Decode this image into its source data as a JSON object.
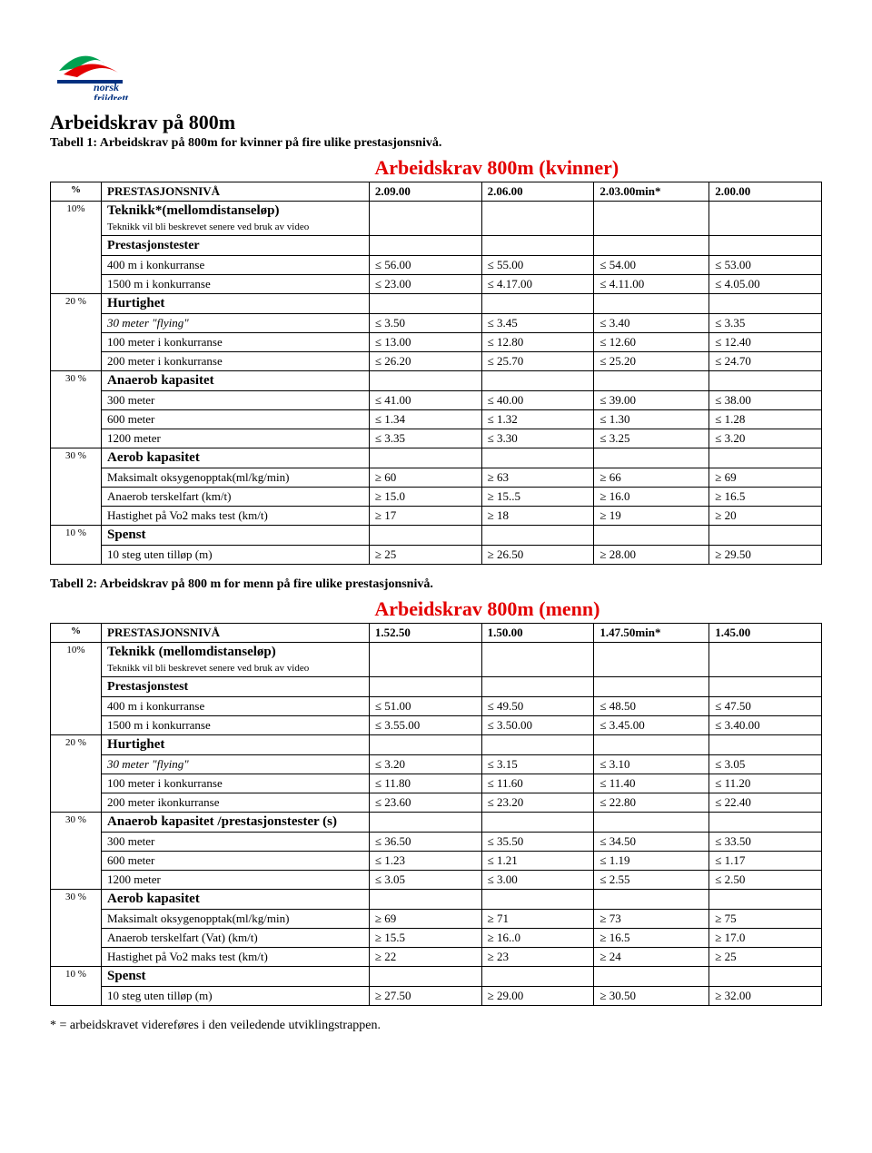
{
  "logo_label": "norsk friidrett",
  "main_title": "Arbeidskrav på 800m",
  "table1": {
    "caption": "Tabell 1: Arbeidskrav på 800m for kvinner på fire ulike prestasjonsnivå.",
    "title": "Arbeidskrav 800m (kvinner)",
    "header": {
      "pct": "%",
      "label": "PRESTASJONSNIVÅ",
      "c1": "2.09.00",
      "c2": "2.06.00",
      "c3": "2.03.00min*",
      "c4": "2.00.00"
    },
    "sections": [
      {
        "pct": "10%",
        "head": "Teknikk*(mellomdistanseløp)",
        "sub": "Teknikk vil bli beskrevet senere ved bruk av video",
        "extra": "Prestasjonstester",
        "rows": [
          {
            "label": "400 m i konkurranse",
            "v": [
              "≤ 56.00",
              "≤ 55.00",
              "≤ 54.00",
              "≤ 53.00"
            ]
          },
          {
            "label": "1500 m i konkurranse",
            "v": [
              "≤ 23.00",
              "≤ 4.17.00",
              "≤ 4.11.00",
              "≤ 4.05.00"
            ]
          }
        ]
      },
      {
        "pct": "20 %",
        "head": "Hurtighet",
        "rows": [
          {
            "label": "30 meter \"flying\"",
            "ital": true,
            "v": [
              "≤ 3.50",
              "≤ 3.45",
              "≤ 3.40",
              "≤ 3.35"
            ]
          },
          {
            "label": "100 meter i konkurranse",
            "v": [
              "≤ 13.00",
              "≤ 12.80",
              "≤ 12.60",
              "≤ 12.40"
            ]
          },
          {
            "label": "200 meter i konkurranse",
            "v": [
              "≤ 26.20",
              "≤ 25.70",
              "≤ 25.20",
              "≤ 24.70"
            ]
          }
        ]
      },
      {
        "pct": "30 %",
        "head": "Anaerob kapasitet",
        "rows": [
          {
            "label": "300 meter",
            "v": [
              "≤ 41.00",
              "≤ 40.00",
              "≤ 39.00",
              "≤ 38.00"
            ]
          },
          {
            "label": "600 meter",
            "v": [
              "≤ 1.34",
              "≤ 1.32",
              "≤ 1.30",
              "≤ 1.28"
            ]
          },
          {
            "label": "1200 meter",
            "v": [
              "≤ 3.35",
              "≤ 3.30",
              "≤ 3.25",
              "≤ 3.20"
            ]
          }
        ]
      },
      {
        "pct": "30 %",
        "head": "Aerob kapasitet",
        "rows": [
          {
            "label": "Maksimalt oksygenopptak(ml/kg/min)",
            "v": [
              "≥ 60",
              "≥ 63",
              "≥ 66",
              "≥ 69"
            ]
          },
          {
            "label": "Anaerob terskelfart (km/t)",
            "v": [
              "≥ 15.0",
              "≥ 15..5",
              "≥ 16.0",
              "≥ 16.5"
            ]
          },
          {
            "label": "Hastighet på Vo2 maks test (km/t)",
            "v": [
              "≥ 17",
              "≥ 18",
              "≥ 19",
              "≥ 20"
            ]
          }
        ]
      },
      {
        "pct": "10 %",
        "head": "Spenst",
        "rows": [
          {
            "label": "10 steg uten tilløp (m)",
            "v": [
              "≥ 25",
              "≥ 26.50",
              "≥ 28.00",
              "≥ 29.50"
            ]
          }
        ]
      }
    ]
  },
  "table2": {
    "caption": "Tabell 2: Arbeidskrav på 800 m for menn på fire ulike prestasjonsnivå.",
    "title": "Arbeidskrav 800m (menn)",
    "header": {
      "pct": "%",
      "label": "PRESTASJONSNIVÅ",
      "c1": "1.52.50",
      "c2": "1.50.00",
      "c3": "1.47.50min*",
      "c4": "1.45.00"
    },
    "sections": [
      {
        "pct": "10%",
        "head": "Teknikk (mellomdistanseløp)",
        "sub": "Teknikk vil bli beskrevet senere ved bruk av video",
        "extra": "Prestasjonstest",
        "rows": [
          {
            "label": "400  m i konkurranse",
            "v": [
              "≤ 51.00",
              "≤ 49.50",
              "≤ 48.50",
              "≤ 47.50"
            ]
          },
          {
            "label": "1500 m i konkurranse",
            "v": [
              "≤ 3.55.00",
              "≤ 3.50.00",
              "≤ 3.45.00",
              "≤ 3.40.00"
            ]
          }
        ]
      },
      {
        "pct": "20 %",
        "head": "Hurtighet",
        "rows": [
          {
            "label": "30  meter \"flying\"",
            "ital": true,
            "v": [
              "≤ 3.20",
              "≤ 3.15",
              "≤ 3.10",
              "≤ 3.05"
            ]
          },
          {
            "label": "100 meter i konkurranse",
            "v": [
              "≤ 11.80",
              "≤ 11.60",
              "≤ 11.40",
              "≤ 11.20"
            ]
          },
          {
            "label": "200 meter ikonkurranse",
            "v": [
              "≤ 23.60",
              "≤ 23.20",
              "≤ 22.80",
              "≤ 22.40"
            ]
          }
        ]
      },
      {
        "pct": "30 %",
        "head": "Anaerob kapasitet /prestasjonstester (s)",
        "rows": [
          {
            "label": "300 meter",
            "v": [
              "≤ 36.50",
              "≤ 35.50",
              "≤ 34.50",
              "≤ 33.50"
            ]
          },
          {
            "label": "600 meter",
            "v": [
              "≤ 1.23",
              "≤ 1.21",
              "≤ 1.19",
              "≤ 1.17"
            ]
          },
          {
            "label": "1200 meter",
            "v": [
              "≤ 3.05",
              "≤ 3.00",
              "≤ 2.55",
              "≤ 2.50"
            ]
          }
        ]
      },
      {
        "pct": "30 %",
        "head": "Aerob kapasitet",
        "rows": [
          {
            "label": "Maksimalt oksygenopptak(ml/kg/min)",
            "v": [
              "≥ 69",
              "≥ 71",
              "≥ 73",
              "≥ 75"
            ]
          },
          {
            "label": "Anaerob terskelfart (Vat) (km/t)",
            "v": [
              "≥ 15.5",
              "≥ 16..0",
              "≥ 16.5",
              "≥ 17.0"
            ]
          },
          {
            "label": "Hastighet på Vo2 maks test (km/t)",
            "v": [
              "≥ 22",
              "≥ 23",
              "≥ 24",
              "≥ 25"
            ]
          }
        ]
      },
      {
        "pct": "10 %",
        "head": "Spenst",
        "rows": [
          {
            "label": "10 steg  uten tilløp (m)",
            "v": [
              "≥ 27.50",
              "≥ 29.00",
              "≥ 30.50",
              "≥ 32.00"
            ]
          }
        ]
      }
    ]
  },
  "footnote": "* = arbeidskravet videreføres i den veiledende utviklingstrappen."
}
